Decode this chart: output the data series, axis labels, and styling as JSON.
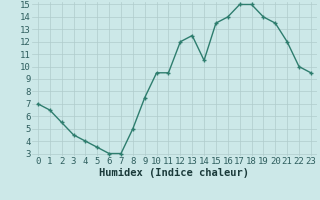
{
  "x": [
    0,
    1,
    2,
    3,
    4,
    5,
    6,
    7,
    8,
    9,
    10,
    11,
    12,
    13,
    14,
    15,
    16,
    17,
    18,
    19,
    20,
    21,
    22,
    23
  ],
  "y": [
    7.0,
    6.5,
    5.5,
    4.5,
    4.0,
    3.5,
    3.0,
    3.0,
    5.0,
    7.5,
    9.5,
    9.5,
    12.0,
    12.5,
    10.5,
    13.5,
    14.0,
    15.0,
    15.0,
    14.0,
    13.5,
    12.0,
    10.0,
    9.5
  ],
  "line_color": "#2e7d6e",
  "marker": "+",
  "bg_color": "#cce8e8",
  "grid_color_major": "#b0cccc",
  "grid_color_minor": "#b0cccc",
  "xlabel": "Humidex (Indice chaleur)",
  "ylim": [
    3,
    15
  ],
  "xlim": [
    -0.5,
    23.5
  ],
  "yticks": [
    3,
    4,
    5,
    6,
    7,
    8,
    9,
    10,
    11,
    12,
    13,
    14,
    15
  ],
  "xticks": [
    0,
    1,
    2,
    3,
    4,
    5,
    6,
    7,
    8,
    9,
    10,
    11,
    12,
    13,
    14,
    15,
    16,
    17,
    18,
    19,
    20,
    21,
    22,
    23
  ],
  "tick_label_color": "#2e5e5e",
  "xlabel_color": "#1a3a3a",
  "xlabel_fontsize": 7.5,
  "tick_fontsize": 6.5,
  "linewidth": 1.0,
  "markersize": 3.5,
  "markeredgewidth": 1.0
}
